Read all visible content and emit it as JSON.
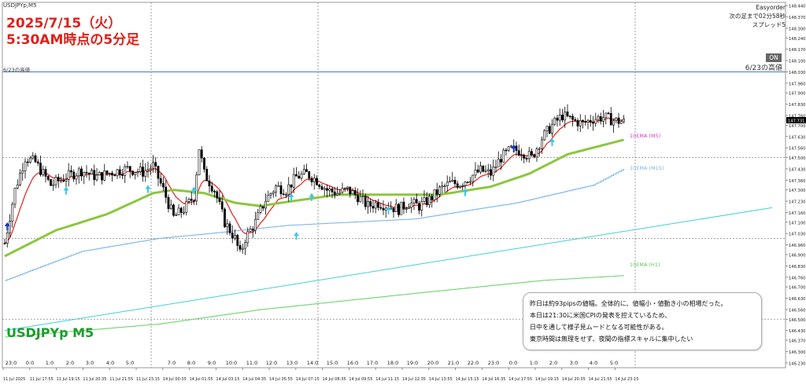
{
  "symbol_header": "USDJPYp,M5",
  "title": {
    "line1": "2025/7/15（火）",
    "line2": "5:30AM時点の5分足"
  },
  "symbol_label": "USDJPYp M5",
  "ea_box": {
    "name": "Easyorder",
    "line1": "次の足まで02分58秒",
    "line2": "スプレッド5"
  },
  "on_button": "ON",
  "high_line": {
    "label_left": "6/23の高値",
    "label_right": "6/23の高値",
    "value": 148.03
  },
  "comment": {
    "lines": [
      "昨日は約93pipsの値幅。全体的に、値幅小・値動き小の相場だった。",
      "本日は21:30に米国CPIの発表を控えているため、",
      "日中を通して様子見ムードとなる可能性がある。",
      "東京時間は無理をせず、夜間の指標スキャルに集中したい"
    ]
  },
  "colors": {
    "title": "#e0201b",
    "symbol": "#1a9e2c",
    "candle": "#000000",
    "ema_m5": "#e0201b",
    "ema_m5_long": "#8cc63f",
    "ema_m15": "#78b4e8",
    "ema_h1": "#6cd36c",
    "trend": "#3fd0d8",
    "high_line": "#4a78c8",
    "arrow_up": "#3cc8e8",
    "arrow_blue": "#1133cc"
  },
  "chart_data": {
    "type": "candlestick",
    "y_axis_ticks": [
      "148.440",
      "148.370",
      "148.300",
      "148.240",
      "148.170",
      "148.100",
      "148.030",
      "147.960",
      "147.900",
      "147.830",
      "147.760",
      "147.731",
      "147.700",
      "147.630",
      "147.560",
      "147.500",
      "147.430",
      "147.360",
      "147.300",
      "147.230",
      "147.160",
      "147.100",
      "147.030",
      "146.960",
      "146.900",
      "146.830",
      "146.760",
      "146.700",
      "146.630",
      "146.560",
      "146.500",
      "146.430",
      "146.370",
      "146.300",
      "146.230"
    ],
    "ylim": [
      146.2,
      148.46
    ],
    "current_price": "147.731",
    "x_hour_labels": [
      "23:0",
      "0:0",
      "1:0",
      "2:0",
      "3:0",
      "4:0",
      "5:0",
      "7:0",
      "8:0",
      "9:0",
      "10:0",
      "11:0",
      "12:0",
      "13:0",
      "14:0",
      "15:0",
      "16:0",
      "17:0",
      "18:0",
      "19:0",
      "20:0",
      "21:0",
      "22:0",
      "23:0",
      "0:0",
      "1:0",
      "2:0",
      "3:0",
      "4:0",
      "5:0"
    ],
    "x_date_labels": [
      "11 Jul 2025",
      "11 Jul 17:55",
      "11 Jul 19:15",
      "11 Jul 20:35",
      "11 Jul 21:55",
      "11 Jul 23:15",
      "14 Jul 00:35",
      "14 Jul 01:55",
      "14 Jul 03:15",
      "14 Jul 04:35",
      "14 Jul 05:55",
      "14 Jul 07:15",
      "14 Jul 08:35",
      "14 Jul 09:55",
      "14 Jul 11:15",
      "14 Jul 12:35",
      "14 Jul 13:55",
      "14 Jul 15:15",
      "14 Jul 16:35",
      "14 Jul 17:55",
      "14 Jul 19:15",
      "14 Jul 20:35",
      "14 Jul 21:55",
      "14 Jul 23:15"
    ],
    "price_path": [
      [
        0,
        146.97
      ],
      [
        4,
        147.3
      ],
      [
        8,
        147.5
      ],
      [
        12,
        147.47
      ],
      [
        18,
        147.33
      ],
      [
        24,
        147.38
      ],
      [
        30,
        147.42
      ],
      [
        36,
        147.38
      ],
      [
        42,
        147.41
      ],
      [
        48,
        147.43
      ],
      [
        54,
        147.41
      ],
      [
        58,
        147.45
      ],
      [
        62,
        147.3
      ],
      [
        66,
        147.13
      ],
      [
        70,
        147.18
      ],
      [
        74,
        147.26
      ],
      [
        76,
        147.56
      ],
      [
        78,
        147.4
      ],
      [
        82,
        147.3
      ],
      [
        86,
        147.1
      ],
      [
        90,
        147.0
      ],
      [
        92,
        146.9
      ],
      [
        94,
        147.0
      ],
      [
        98,
        147.1
      ],
      [
        102,
        147.24
      ],
      [
        106,
        147.32
      ],
      [
        110,
        147.3
      ],
      [
        114,
        147.38
      ],
      [
        118,
        147.4
      ],
      [
        122,
        147.36
      ],
      [
        126,
        147.3
      ],
      [
        130,
        147.28
      ],
      [
        134,
        147.3
      ],
      [
        138,
        147.26
      ],
      [
        142,
        147.2
      ],
      [
        146,
        147.22
      ],
      [
        150,
        147.2
      ],
      [
        154,
        147.18
      ],
      [
        158,
        147.22
      ],
      [
        162,
        147.2
      ],
      [
        166,
        147.24
      ],
      [
        170,
        147.3
      ],
      [
        174,
        147.34
      ],
      [
        178,
        147.34
      ],
      [
        182,
        147.38
      ],
      [
        186,
        147.42
      ],
      [
        190,
        147.4
      ],
      [
        194,
        147.5
      ],
      [
        198,
        147.55
      ],
      [
        202,
        147.54
      ],
      [
        206,
        147.5
      ],
      [
        210,
        147.62
      ],
      [
        214,
        147.7
      ],
      [
        218,
        147.76
      ],
      [
        222,
        147.73
      ],
      [
        226,
        147.71
      ],
      [
        230,
        147.74
      ],
      [
        234,
        147.75
      ],
      [
        238,
        147.73
      ],
      [
        242,
        147.72
      ]
    ],
    "ema_m5_long": [
      [
        0,
        146.89
      ],
      [
        20,
        147.05
      ],
      [
        40,
        147.15
      ],
      [
        58,
        147.28
      ],
      [
        66,
        147.3
      ],
      [
        78,
        147.28
      ],
      [
        90,
        147.22
      ],
      [
        100,
        147.2
      ],
      [
        108,
        147.22
      ],
      [
        130,
        147.27
      ],
      [
        170,
        147.27
      ],
      [
        190,
        147.32
      ],
      [
        205,
        147.4
      ],
      [
        220,
        147.52
      ],
      [
        242,
        147.61
      ]
    ],
    "ema_m15": [
      [
        0,
        146.74
      ],
      [
        30,
        146.92
      ],
      [
        60,
        147.0
      ],
      [
        80,
        147.03
      ],
      [
        110,
        147.08
      ],
      [
        160,
        147.12
      ],
      [
        200,
        147.22
      ],
      [
        230,
        147.33
      ],
      [
        242,
        147.43
      ]
    ],
    "ema_h1": [
      [
        0,
        146.39
      ],
      [
        60,
        146.47
      ],
      [
        100,
        146.56
      ],
      [
        160,
        146.66
      ],
      [
        210,
        146.74
      ],
      [
        242,
        146.77
      ]
    ],
    "trend_line": [
      [
        0,
        146.43
      ],
      [
        300,
        147.19
      ]
    ],
    "ema_labels": {
      "m5": "10EMA (M5)",
      "m15": "10EMA (M15)",
      "h1": "10EMA (H1)"
    }
  }
}
